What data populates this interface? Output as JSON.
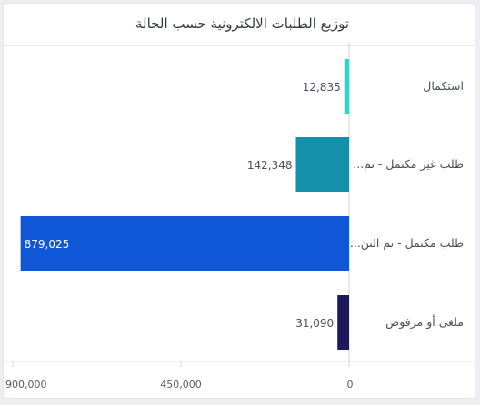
{
  "chart_data": {
    "type": "bar",
    "orientation": "horizontal",
    "title": "توزيع الطلبات الالكترونية حسب الحالة",
    "categories": [
      "استكمال",
      "طلب غير مكتمل - تم...",
      "طلب مكتمل - تم التن...",
      "ملغى أو مرفوض"
    ],
    "values": [
      12835,
      142348,
      879025,
      31090
    ],
    "value_labels": [
      "12,835",
      "142,348",
      "879,025",
      "31,090"
    ],
    "colors": [
      "#2fd3c7",
      "#1590aa",
      "#0f57d6",
      "#1c1a5c"
    ],
    "xlim": [
      0,
      900000
    ],
    "xticks": [
      0,
      450000,
      900000
    ],
    "xtick_labels": [
      "0",
      "450,000",
      "900,000"
    ],
    "x_direction": "reversed",
    "grid": false
  }
}
